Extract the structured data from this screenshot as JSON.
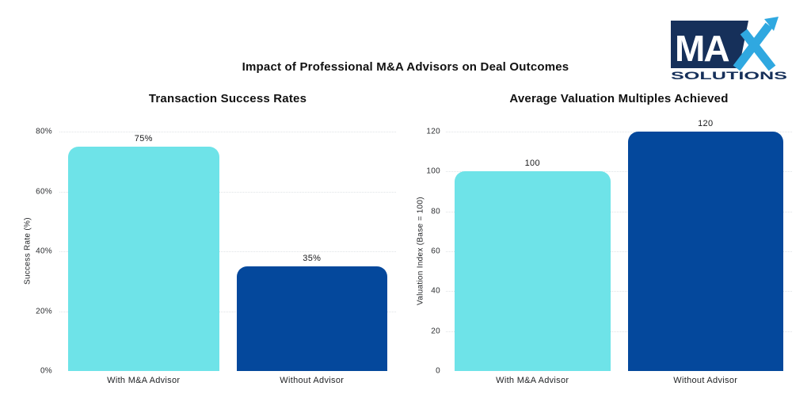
{
  "header": {
    "main_title": "Impact of Professional M&A Advisors on Deal Outcomes"
  },
  "logo": {
    "brand_ma": "MA",
    "brand_x": "X",
    "brand_sub": "SOLUTIONS",
    "navy": "#16305A",
    "blue": "#2FA8E0"
  },
  "colors": {
    "bar_cyan": "#6EE3E8",
    "bar_navy": "#04489C",
    "gridline": "#dfe3e6",
    "text": "#17181a",
    "background": "#ffffff"
  },
  "chart_data": [
    {
      "type": "bar",
      "title": "Transaction Success Rates",
      "categories": [
        "With M&A Advisor",
        "Without Advisor"
      ],
      "values": [
        75,
        35
      ],
      "value_labels": [
        "75%",
        "35%"
      ],
      "bar_colors": [
        "#6EE3E8",
        "#04489C"
      ],
      "xlabel": "",
      "ylabel": "Success Rate (%)",
      "ylim": [
        0,
        80
      ],
      "yticks": [
        0,
        20,
        40,
        60,
        80
      ],
      "ytick_labels": [
        "0%",
        "20%",
        "40%",
        "60%",
        "80%"
      ],
      "grid": "horizontal-dotted",
      "legend": "none"
    },
    {
      "type": "bar",
      "title": "Average Valuation Multiples Achieved",
      "categories": [
        "With M&A Advisor",
        "Without Advisor"
      ],
      "values": [
        100,
        120
      ],
      "value_labels": [
        "100",
        "120"
      ],
      "bar_colors": [
        "#6EE3E8",
        "#04489C"
      ],
      "xlabel": "",
      "ylabel": "Valuation Index (Base = 100)",
      "ylim": [
        0,
        120
      ],
      "yticks": [
        0,
        20,
        40,
        60,
        80,
        100,
        120
      ],
      "ytick_labels": [
        "0",
        "20",
        "40",
        "60",
        "80",
        "100",
        "120"
      ],
      "grid": "horizontal-dotted",
      "legend": "none"
    }
  ]
}
